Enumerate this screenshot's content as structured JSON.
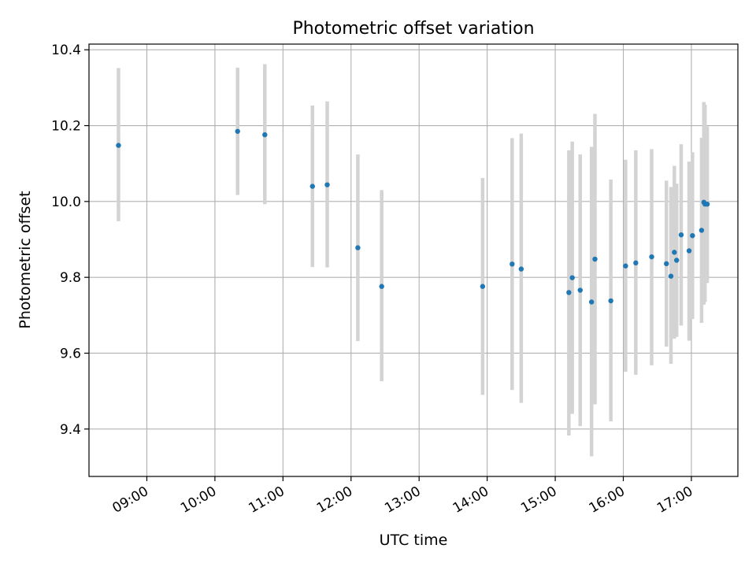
{
  "chart_data": {
    "type": "scatter",
    "title": "Photometric offset variation",
    "xlabel": "UTC time",
    "ylabel": "Photometric offset",
    "xlim": [
      "08:09",
      "17:41"
    ],
    "ylim": [
      9.275,
      10.415
    ],
    "xticks": [
      "09:00",
      "10:00",
      "11:00",
      "12:00",
      "13:00",
      "14:00",
      "15:00",
      "16:00",
      "17:00"
    ],
    "yticks": [
      "9.4",
      "9.6",
      "9.8",
      "10.0",
      "10.2",
      "10.4"
    ],
    "grid": true,
    "legend": "none",
    "colors": {
      "point": "#1f77b4",
      "errorbar": "#d3d3d3",
      "grid": "#b0b0b0"
    },
    "points": [
      {
        "x": "08:35",
        "y": 10.148,
        "ylow": 9.948,
        "yhigh": 10.352
      },
      {
        "x": "10:20",
        "y": 10.185,
        "ylow": 10.017,
        "yhigh": 10.353
      },
      {
        "x": "10:44",
        "y": 10.176,
        "ylow": 9.993,
        "yhigh": 10.362
      },
      {
        "x": "11:26",
        "y": 10.04,
        "ylow": 9.827,
        "yhigh": 10.253
      },
      {
        "x": "11:39",
        "y": 10.044,
        "ylow": 9.826,
        "yhigh": 10.264
      },
      {
        "x": "12:06",
        "y": 9.878,
        "ylow": 9.632,
        "yhigh": 10.124
      },
      {
        "x": "12:27",
        "y": 9.776,
        "ylow": 9.526,
        "yhigh": 10.03
      },
      {
        "x": "13:56",
        "y": 9.776,
        "ylow": 9.49,
        "yhigh": 10.062
      },
      {
        "x": "14:22",
        "y": 9.835,
        "ylow": 9.503,
        "yhigh": 10.167
      },
      {
        "x": "14:30",
        "y": 9.822,
        "ylow": 9.469,
        "yhigh": 10.179
      },
      {
        "x": "15:12",
        "y": 9.76,
        "ylow": 9.383,
        "yhigh": 10.135
      },
      {
        "x": "15:15",
        "y": 9.799,
        "ylow": 9.44,
        "yhigh": 10.158
      },
      {
        "x": "15:22",
        "y": 9.766,
        "ylow": 9.408,
        "yhigh": 10.124
      },
      {
        "x": "15:32",
        "y": 9.735,
        "ylow": 9.328,
        "yhigh": 10.144
      },
      {
        "x": "15:35",
        "y": 9.848,
        "ylow": 9.465,
        "yhigh": 10.231
      },
      {
        "x": "15:49",
        "y": 9.738,
        "ylow": 9.42,
        "yhigh": 10.058
      },
      {
        "x": "16:02",
        "y": 9.83,
        "ylow": 9.551,
        "yhigh": 10.11
      },
      {
        "x": "16:11",
        "y": 9.838,
        "ylow": 9.543,
        "yhigh": 10.135
      },
      {
        "x": "16:25",
        "y": 9.854,
        "ylow": 9.568,
        "yhigh": 10.138
      },
      {
        "x": "16:38",
        "y": 9.836,
        "ylow": 9.617,
        "yhigh": 10.055
      },
      {
        "x": "16:42",
        "y": 9.803,
        "ylow": 9.572,
        "yhigh": 10.038
      },
      {
        "x": "16:45",
        "y": 9.866,
        "ylow": 9.638,
        "yhigh": 10.094
      },
      {
        "x": "16:47",
        "y": 9.845,
        "ylow": 9.643,
        "yhigh": 10.047
      },
      {
        "x": "16:51",
        "y": 9.912,
        "ylow": 9.673,
        "yhigh": 10.151
      },
      {
        "x": "16:58",
        "y": 9.87,
        "ylow": 9.633,
        "yhigh": 10.105
      },
      {
        "x": "17:01",
        "y": 9.91,
        "ylow": 9.69,
        "yhigh": 10.13
      },
      {
        "x": "17:09",
        "y": 9.924,
        "ylow": 9.68,
        "yhigh": 10.168
      },
      {
        "x": "17:11",
        "y": 9.998,
        "ylow": 9.728,
        "yhigh": 10.262
      },
      {
        "x": "17:12",
        "y": 9.993,
        "ylow": 9.735,
        "yhigh": 10.255
      },
      {
        "x": "17:14",
        "y": 9.993,
        "ylow": 9.785,
        "yhigh": 10.198
      }
    ]
  }
}
